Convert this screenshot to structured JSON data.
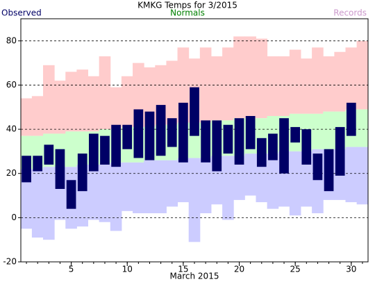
{
  "chart_data": {
    "type": "range_bar",
    "title": "KMKG Temps for 3/2015",
    "xlabel": "March 2015",
    "x": [
      1,
      2,
      3,
      4,
      5,
      6,
      7,
      8,
      9,
      10,
      11,
      12,
      13,
      14,
      15,
      16,
      17,
      18,
      19,
      20,
      21,
      22,
      23,
      24,
      25,
      26,
      27,
      28,
      29,
      30,
      31
    ],
    "xlim": [
      0.5,
      31.5
    ],
    "xticks": [
      5,
      10,
      15,
      20,
      25,
      30
    ],
    "ylim": [
      -20,
      90
    ],
    "yticks": [
      -20,
      0,
      20,
      40,
      60,
      80
    ],
    "grid": true,
    "series": [
      {
        "name": "Observed",
        "color": "#000066",
        "high": [
          28,
          28,
          33,
          31,
          17,
          29,
          38,
          37,
          42,
          42,
          49,
          48,
          51,
          45,
          52,
          59,
          44,
          44,
          42,
          45,
          46,
          36,
          38,
          45,
          41,
          40,
          29,
          31,
          41,
          52,
          null
        ],
        "low": [
          16,
          21,
          24,
          13,
          4,
          12,
          21,
          24,
          23,
          31,
          27,
          26,
          28,
          32,
          25,
          37,
          25,
          21,
          29,
          24,
          31,
          23,
          26,
          20,
          34,
          24,
          17,
          12,
          19,
          37,
          null
        ]
      },
      {
        "name": "Normals",
        "color": "#008000",
        "fill": "#ccffcc",
        "high": [
          37,
          37,
          38,
          38,
          39,
          39,
          39,
          40,
          40,
          41,
          41,
          41,
          42,
          42,
          43,
          43,
          43,
          44,
          44,
          45,
          45,
          45,
          46,
          46,
          47,
          47,
          47,
          48,
          48,
          49,
          49
        ],
        "low": [
          22,
          22,
          23,
          23,
          23,
          24,
          24,
          24,
          25,
          25,
          25,
          26,
          26,
          26,
          27,
          27,
          27,
          28,
          28,
          28,
          29,
          29,
          29,
          30,
          30,
          30,
          31,
          31,
          31,
          32,
          32
        ]
      },
      {
        "name": "Records",
        "color": "#cc99cc",
        "fill_high": "#ffcccc",
        "fill_low": "#ccccff",
        "high": [
          54,
          55,
          69,
          62,
          66,
          67,
          64,
          73,
          59,
          64,
          70,
          68,
          69,
          71,
          77,
          72,
          77,
          73,
          77,
          82,
          82,
          81,
          73,
          73,
          76,
          72,
          77,
          73,
          75,
          77,
          80
        ],
        "low": [
          -5,
          -9,
          -10,
          -1,
          -5,
          -4,
          -1,
          -2,
          -6,
          3,
          2,
          2,
          2,
          5,
          7,
          -11,
          2,
          6,
          -1,
          8,
          10,
          7,
          4,
          5,
          1,
          5,
          2,
          8,
          8,
          7,
          6
        ]
      }
    ]
  }
}
